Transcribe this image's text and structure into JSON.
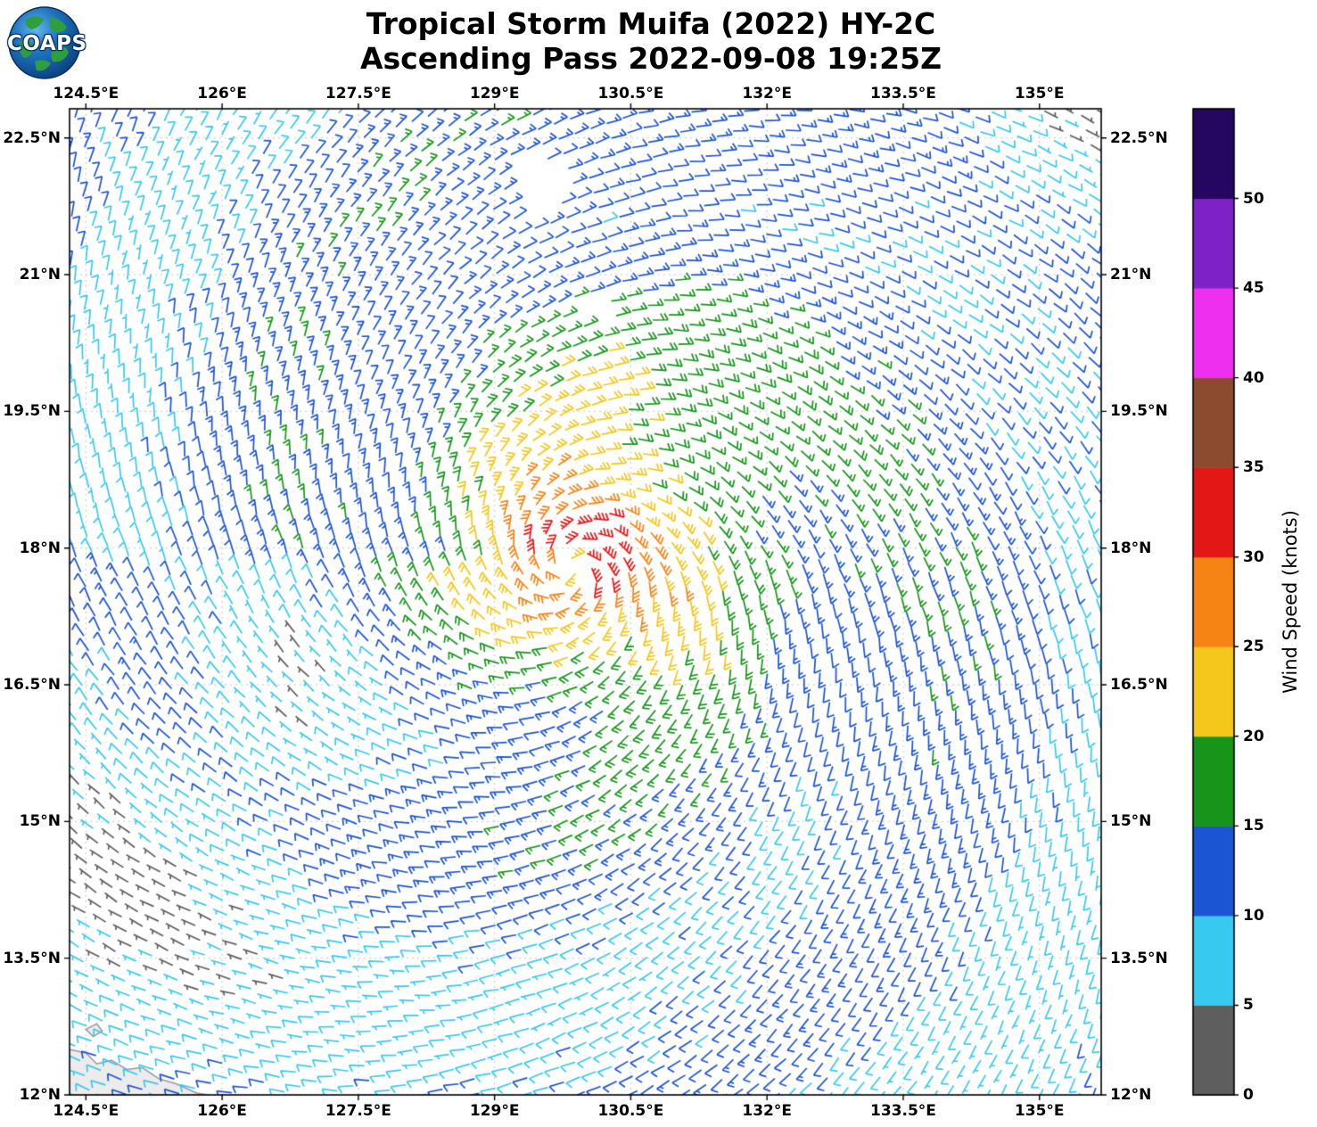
{
  "header": {
    "title_line1": "Tropical Storm Muifa (2022) HY-2C",
    "title_line2": "Ascending Pass 2022-09-08 19:25Z",
    "logo_text": "COAPS"
  },
  "chart_data": {
    "type": "wind_barb_map",
    "storm_name": "Tropical Storm Muifa",
    "storm_year": "2022",
    "satellite": "HY-2C",
    "pass_type": "Ascending",
    "pass_time": "2022-09-08 19:25Z",
    "grid": true,
    "lon_range": [
      124.32,
      135.68
    ],
    "lat_range": [
      12.0,
      22.82
    ],
    "x_axis": {
      "ticks_deg": [
        124.5,
        126,
        127.5,
        129,
        130.5,
        132,
        133.5,
        135
      ],
      "labels": [
        "124.5°E",
        "126°E",
        "127.5°E",
        "129°E",
        "130.5°E",
        "132°E",
        "133.5°E",
        "135°E"
      ]
    },
    "y_axis": {
      "ticks_deg": [
        12,
        13.5,
        15,
        16.5,
        18,
        19.5,
        21,
        22.5
      ],
      "labels": [
        "12°N",
        "13.5°N",
        "15°N",
        "16.5°N",
        "18°N",
        "19.5°N",
        "21°N",
        "22.5°N"
      ]
    },
    "colorbar": {
      "label": "Wind Speed (knots)",
      "tick_values": [
        0,
        5,
        10,
        15,
        20,
        25,
        30,
        35,
        40,
        45,
        50
      ],
      "bins": [
        {
          "upto": 5,
          "color": "#5E5E5E"
        },
        {
          "upto": 10,
          "color": "#38C9F0"
        },
        {
          "upto": 15,
          "color": "#1C55D4"
        },
        {
          "upto": 20,
          "color": "#17951B"
        },
        {
          "upto": 25,
          "color": "#F5C71C"
        },
        {
          "upto": 30,
          "color": "#F58414"
        },
        {
          "upto": 35,
          "color": "#E41717"
        },
        {
          "upto": 40,
          "color": "#8C4B2F"
        },
        {
          "upto": 45,
          "color": "#EF2FEF"
        },
        {
          "upto": 50,
          "color": "#7E22C8"
        },
        {
          "upto": 999,
          "color": "#250660"
        }
      ]
    },
    "wind_field_model": {
      "comment": "cyclonic (counterclockwise) vortex fit of the depicted scatterometer winds",
      "vortex": {
        "lon": 129.85,
        "lat": 17.8,
        "vmax": 31,
        "r_core": 0.12,
        "r_max": 0.5,
        "decay": 0.45
      },
      "asym": {
        "amp": 0.13,
        "phase_deg": 50
      },
      "bands": {
        "amp": 2.4,
        "k_theta": 2.6,
        "k_r": 1.9
      },
      "lulls": [
        {
          "lon": 126.9,
          "lat": 16.35,
          "amp": 5,
          "sigma": 0.8
        },
        {
          "lon": 125.0,
          "lat": 14.0,
          "amp": 4,
          "sigma": 1.1
        },
        {
          "lon": 135.5,
          "lat": 22.6,
          "amp": 6,
          "sigma": 1.0
        }
      ],
      "noise_kt": 3,
      "inflow_deg": 22,
      "cap_kt": 34.4
    },
    "barb_grid": {
      "spacing_along_deg": 0.185,
      "spacing_row_deg": 0.17,
      "swath_tilt_deg": 18
    },
    "data_gaps": [
      {
        "lon": 129.45,
        "lat": 21.95,
        "r": 0.3
      },
      {
        "lon": 130.05,
        "lat": 20.6,
        "r": 0.17
      },
      {
        "lon": 129.92,
        "lat": 17.93,
        "r": 0.07
      }
    ],
    "land": {
      "fill": "#ececec",
      "stroke": "#999999",
      "polygons": [
        [
          [
            124.32,
            12.5
          ],
          [
            124.5,
            12.46
          ],
          [
            124.62,
            12.34
          ],
          [
            124.78,
            12.38
          ],
          [
            124.95,
            12.28
          ],
          [
            125.12,
            12.3
          ],
          [
            125.3,
            12.18
          ],
          [
            125.5,
            12.12
          ],
          [
            125.72,
            12.02
          ],
          [
            125.85,
            12.0
          ],
          [
            124.32,
            12.0
          ]
        ],
        [
          [
            124.5,
            12.72
          ],
          [
            124.62,
            12.78
          ],
          [
            124.68,
            12.7
          ],
          [
            124.58,
            12.64
          ]
        ]
      ]
    }
  }
}
